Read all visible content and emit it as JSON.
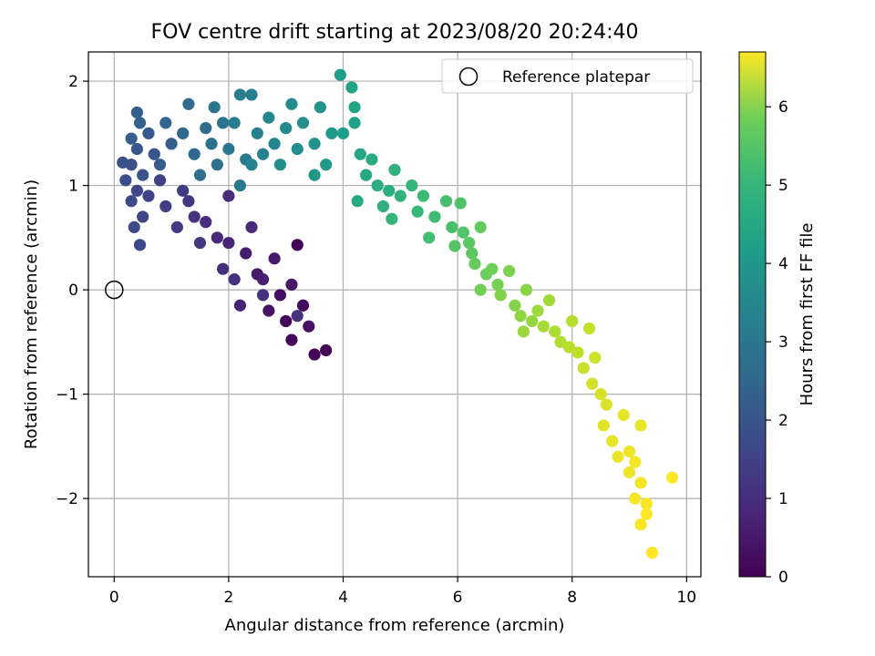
{
  "chart_data": {
    "type": "scatter",
    "title": "FOV centre drift starting at 2023/08/20 20:24:40",
    "xlabel": "Angular distance from reference (arcmin)",
    "ylabel": "Rotation from reference (arcmin)",
    "xlim": [
      -0.45,
      10.25
    ],
    "ylim": [
      -2.75,
      2.28
    ],
    "xticks": [
      0,
      2,
      4,
      6,
      8,
      10
    ],
    "yticks": [
      -2,
      -1,
      0,
      1,
      2
    ],
    "xtick_labels": [
      "0",
      "2",
      "4",
      "6",
      "8",
      "10"
    ],
    "ytick_labels": [
      "−2",
      "−1",
      "0",
      "1",
      "2"
    ],
    "grid": true,
    "legend": {
      "location": "upper-right",
      "entries": [
        {
          "label": "Reference platepar",
          "marker": "open-circle"
        }
      ]
    },
    "reference_point": {
      "x": 0,
      "y": 0
    },
    "colorbar": {
      "label": "Hours from first FF file",
      "colormap": "viridis",
      "range": [
        0,
        6.7
      ],
      "ticks": [
        0,
        1,
        2,
        3,
        4,
        5,
        6
      ],
      "tick_labels": [
        "0",
        "1",
        "2",
        "3",
        "4",
        "5",
        "6"
      ]
    },
    "series": [
      {
        "colored_by": "hours",
        "points": [
          {
            "x": 3.2,
            "y": 0.43,
            "t": 0.05
          },
          {
            "x": 3.0,
            "y": -0.3,
            "t": 0.1
          },
          {
            "x": 3.5,
            "y": -0.62,
            "t": 0.1
          },
          {
            "x": 3.7,
            "y": -0.58,
            "t": 0.12
          },
          {
            "x": 3.1,
            "y": -0.48,
            "t": 0.15
          },
          {
            "x": 3.3,
            "y": -0.15,
            "t": 0.2
          },
          {
            "x": 2.9,
            "y": -0.05,
            "t": 0.25
          },
          {
            "x": 3.4,
            "y": -0.35,
            "t": 0.3
          },
          {
            "x": 2.7,
            "y": -0.2,
            "t": 0.35
          },
          {
            "x": 3.1,
            "y": 0.05,
            "t": 0.4
          },
          {
            "x": 2.5,
            "y": 0.15,
            "t": 0.45
          },
          {
            "x": 2.8,
            "y": 0.3,
            "t": 0.5
          },
          {
            "x": 2.3,
            "y": 0.35,
            "t": 0.55
          },
          {
            "x": 2.6,
            "y": 0.1,
            "t": 0.6
          },
          {
            "x": 2.2,
            "y": -0.15,
            "t": 0.65
          },
          {
            "x": 2.0,
            "y": 0.45,
            "t": 0.7
          },
          {
            "x": 1.8,
            "y": 0.5,
            "t": 0.75
          },
          {
            "x": 2.4,
            "y": 0.6,
            "t": 0.8
          },
          {
            "x": 1.6,
            "y": 0.65,
            "t": 0.85
          },
          {
            "x": 2.0,
            "y": 0.9,
            "t": 0.85
          },
          {
            "x": 1.9,
            "y": 0.2,
            "t": 0.9
          },
          {
            "x": 2.1,
            "y": 0.1,
            "t": 0.9
          },
          {
            "x": 2.6,
            "y": -0.05,
            "t": 0.95
          },
          {
            "x": 3.2,
            "y": -0.25,
            "t": 0.95
          },
          {
            "x": 1.4,
            "y": 0.7,
            "t": 1.0
          },
          {
            "x": 1.5,
            "y": 0.45,
            "t": 1.05
          },
          {
            "x": 1.3,
            "y": 0.85,
            "t": 1.1
          },
          {
            "x": 1.1,
            "y": 0.6,
            "t": 1.15
          },
          {
            "x": 1.2,
            "y": 0.95,
            "t": 1.2
          },
          {
            "x": 0.9,
            "y": 0.8,
            "t": 1.25
          },
          {
            "x": 0.8,
            "y": 1.05,
            "t": 1.3
          },
          {
            "x": 0.6,
            "y": 0.9,
            "t": 1.35
          },
          {
            "x": 0.5,
            "y": 0.7,
            "t": 1.4
          },
          {
            "x": 0.4,
            "y": 0.95,
            "t": 1.45
          },
          {
            "x": 0.3,
            "y": 0.85,
            "t": 1.5
          },
          {
            "x": 0.45,
            "y": 0.43,
            "t": 1.5
          },
          {
            "x": 0.35,
            "y": 0.6,
            "t": 1.55
          },
          {
            "x": 0.2,
            "y": 1.05,
            "t": 1.6
          },
          {
            "x": 0.3,
            "y": 1.2,
            "t": 1.65
          },
          {
            "x": 0.15,
            "y": 1.22,
            "t": 1.7
          },
          {
            "x": 0.5,
            "y": 1.1,
            "t": 1.75
          },
          {
            "x": 0.7,
            "y": 1.3,
            "t": 1.8
          },
          {
            "x": 0.4,
            "y": 1.35,
            "t": 1.85
          },
          {
            "x": 0.6,
            "y": 1.5,
            "t": 1.9
          },
          {
            "x": 0.8,
            "y": 1.2,
            "t": 1.95
          },
          {
            "x": 1.0,
            "y": 1.4,
            "t": 2.0
          },
          {
            "x": 0.3,
            "y": 1.45,
            "t": 2.0
          },
          {
            "x": 0.4,
            "y": 1.7,
            "t": 2.05
          },
          {
            "x": 0.45,
            "y": 1.6,
            "t": 2.1
          },
          {
            "x": 0.9,
            "y": 1.6,
            "t": 2.15
          },
          {
            "x": 1.2,
            "y": 1.5,
            "t": 2.2
          },
          {
            "x": 1.4,
            "y": 1.3,
            "t": 2.25
          },
          {
            "x": 1.3,
            "y": 1.78,
            "t": 2.3
          },
          {
            "x": 1.6,
            "y": 1.55,
            "t": 2.35
          },
          {
            "x": 1.5,
            "y": 1.1,
            "t": 2.4
          },
          {
            "x": 1.8,
            "y": 1.2,
            "t": 2.45
          },
          {
            "x": 1.7,
            "y": 1.4,
            "t": 2.5
          },
          {
            "x": 1.9,
            "y": 1.6,
            "t": 2.55
          },
          {
            "x": 2.0,
            "y": 1.35,
            "t": 2.6
          },
          {
            "x": 1.75,
            "y": 1.75,
            "t": 2.65
          },
          {
            "x": 2.2,
            "y": 1.0,
            "t": 2.7
          },
          {
            "x": 2.3,
            "y": 1.25,
            "t": 2.75
          },
          {
            "x": 2.1,
            "y": 1.6,
            "t": 2.8
          },
          {
            "x": 2.2,
            "y": 1.87,
            "t": 2.85
          },
          {
            "x": 2.4,
            "y": 1.87,
            "t": 2.9
          },
          {
            "x": 2.5,
            "y": 1.5,
            "t": 2.95
          },
          {
            "x": 2.6,
            "y": 1.3,
            "t": 3.0
          },
          {
            "x": 2.4,
            "y": 1.2,
            "t": 3.0
          },
          {
            "x": 2.8,
            "y": 1.4,
            "t": 3.05
          },
          {
            "x": 2.7,
            "y": 1.65,
            "t": 3.1
          },
          {
            "x": 3.0,
            "y": 1.55,
            "t": 3.15
          },
          {
            "x": 3.1,
            "y": 1.78,
            "t": 3.2
          },
          {
            "x": 3.2,
            "y": 1.35,
            "t": 3.25
          },
          {
            "x": 2.9,
            "y": 1.2,
            "t": 3.3
          },
          {
            "x": 3.3,
            "y": 1.6,
            "t": 3.35
          },
          {
            "x": 3.5,
            "y": 1.4,
            "t": 3.4
          },
          {
            "x": 3.6,
            "y": 1.75,
            "t": 3.45
          },
          {
            "x": 3.5,
            "y": 1.1,
            "t": 3.5
          },
          {
            "x": 3.8,
            "y": 1.5,
            "t": 3.6
          },
          {
            "x": 3.7,
            "y": 1.2,
            "t": 3.65
          },
          {
            "x": 3.95,
            "y": 2.06,
            "t": 3.7
          },
          {
            "x": 4.0,
            "y": 1.5,
            "t": 3.75
          },
          {
            "x": 4.2,
            "y": 1.6,
            "t": 3.8
          },
          {
            "x": 4.15,
            "y": 1.94,
            "t": 3.85
          },
          {
            "x": 4.2,
            "y": 1.75,
            "t": 3.9
          },
          {
            "x": 4.3,
            "y": 1.3,
            "t": 3.95
          },
          {
            "x": 4.4,
            "y": 1.1,
            "t": 4.0
          },
          {
            "x": 4.25,
            "y": 0.85,
            "t": 4.05
          },
          {
            "x": 4.5,
            "y": 1.25,
            "t": 4.1
          },
          {
            "x": 4.6,
            "y": 1.0,
            "t": 4.15
          },
          {
            "x": 4.8,
            "y": 0.95,
            "t": 4.2
          },
          {
            "x": 4.7,
            "y": 0.8,
            "t": 4.25
          },
          {
            "x": 4.9,
            "y": 1.15,
            "t": 4.3
          },
          {
            "x": 5.0,
            "y": 0.9,
            "t": 4.35
          },
          {
            "x": 4.85,
            "y": 0.68,
            "t": 4.4
          },
          {
            "x": 5.2,
            "y": 1.0,
            "t": 4.45
          },
          {
            "x": 5.3,
            "y": 0.75,
            "t": 4.5
          },
          {
            "x": 5.4,
            "y": 0.9,
            "t": 4.55
          },
          {
            "x": 5.6,
            "y": 0.7,
            "t": 4.6
          },
          {
            "x": 5.5,
            "y": 0.5,
            "t": 4.65
          },
          {
            "x": 5.8,
            "y": 0.85,
            "t": 4.7
          },
          {
            "x": 5.9,
            "y": 0.6,
            "t": 4.75
          },
          {
            "x": 6.05,
            "y": 0.83,
            "t": 4.8
          },
          {
            "x": 6.1,
            "y": 0.55,
            "t": 4.85
          },
          {
            "x": 5.95,
            "y": 0.42,
            "t": 4.9
          },
          {
            "x": 6.2,
            "y": 0.45,
            "t": 4.95
          },
          {
            "x": 6.25,
            "y": 0.35,
            "t": 5.0
          },
          {
            "x": 6.4,
            "y": 0.6,
            "t": 5.05
          },
          {
            "x": 6.3,
            "y": 0.25,
            "t": 5.1
          },
          {
            "x": 6.5,
            "y": 0.15,
            "t": 5.15
          },
          {
            "x": 6.6,
            "y": 0.2,
            "t": 5.2
          },
          {
            "x": 6.4,
            "y": 0.0,
            "t": 5.25
          },
          {
            "x": 6.7,
            "y": 0.05,
            "t": 5.3
          },
          {
            "x": 6.9,
            "y": 0.18,
            "t": 5.35
          },
          {
            "x": 6.75,
            "y": -0.05,
            "t": 5.4
          },
          {
            "x": 7.0,
            "y": -0.15,
            "t": 5.45
          },
          {
            "x": 7.2,
            "y": 0.0,
            "t": 5.5
          },
          {
            "x": 7.1,
            "y": -0.25,
            "t": 5.55
          },
          {
            "x": 7.3,
            "y": -0.3,
            "t": 5.6
          },
          {
            "x": 7.15,
            "y": -0.4,
            "t": 5.65
          },
          {
            "x": 7.4,
            "y": -0.2,
            "t": 5.7
          },
          {
            "x": 7.6,
            "y": -0.1,
            "t": 5.75
          },
          {
            "x": 7.5,
            "y": -0.35,
            "t": 5.8
          },
          {
            "x": 7.7,
            "y": -0.4,
            "t": 5.85
          },
          {
            "x": 7.8,
            "y": -0.5,
            "t": 5.9
          },
          {
            "x": 8.0,
            "y": -0.3,
            "t": 5.95
          },
          {
            "x": 7.95,
            "y": -0.55,
            "t": 6.0
          },
          {
            "x": 8.1,
            "y": -0.6,
            "t": 6.05
          },
          {
            "x": 8.3,
            "y": -0.37,
            "t": 6.1
          },
          {
            "x": 8.2,
            "y": -0.75,
            "t": 6.15
          },
          {
            "x": 8.4,
            "y": -0.65,
            "t": 6.2
          },
          {
            "x": 8.35,
            "y": -0.9,
            "t": 6.25
          },
          {
            "x": 8.5,
            "y": -1.0,
            "t": 6.3
          },
          {
            "x": 8.6,
            "y": -1.1,
            "t": 6.35
          },
          {
            "x": 8.55,
            "y": -1.3,
            "t": 6.4
          },
          {
            "x": 8.7,
            "y": -1.45,
            "t": 6.45
          },
          {
            "x": 8.9,
            "y": -1.2,
            "t": 6.45
          },
          {
            "x": 9.2,
            "y": -1.3,
            "t": 6.5
          },
          {
            "x": 8.8,
            "y": -1.6,
            "t": 6.5
          },
          {
            "x": 9.0,
            "y": -1.55,
            "t": 6.55
          },
          {
            "x": 9.0,
            "y": -1.75,
            "t": 6.55
          },
          {
            "x": 9.1,
            "y": -1.65,
            "t": 6.6
          },
          {
            "x": 9.2,
            "y": -1.85,
            "t": 6.6
          },
          {
            "x": 9.1,
            "y": -2.0,
            "t": 6.62
          },
          {
            "x": 9.3,
            "y": -2.05,
            "t": 6.65
          },
          {
            "x": 9.2,
            "y": -2.25,
            "t": 6.65
          },
          {
            "x": 9.3,
            "y": -2.15,
            "t": 6.68
          },
          {
            "x": 9.75,
            "y": -1.8,
            "t": 6.7
          },
          {
            "x": 9.4,
            "y": -2.52,
            "t": 6.7
          }
        ]
      }
    ]
  }
}
